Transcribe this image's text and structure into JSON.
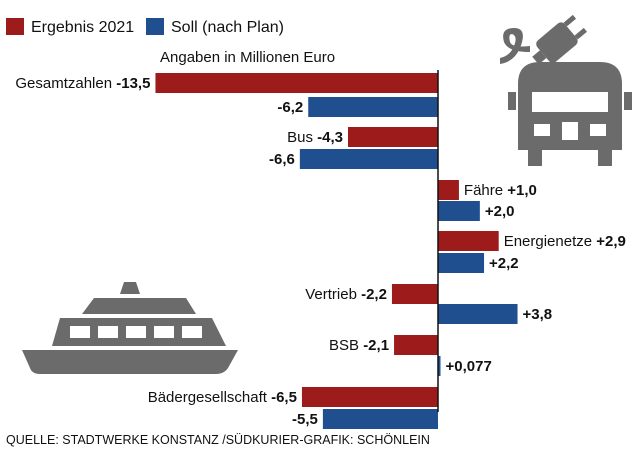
{
  "chart_data": {
    "type": "bar",
    "orientation": "horizontal",
    "subtitle": "Angaben in Millionen Euro",
    "categories": [
      "Gesamtzahlen",
      "Bus",
      "Fähre",
      "Energienetze",
      "Vertrieb",
      "BSB",
      "Bädergesellschaft"
    ],
    "series": [
      {
        "name": "Ergebnis 2021",
        "color": "#9e1b1b",
        "values": [
          -13.5,
          -4.3,
          1.0,
          2.9,
          -2.2,
          -2.1,
          -6.5
        ],
        "labels": [
          "-13,5",
          "-4,3",
          "+1,0",
          "+2,9",
          "-2,2",
          "-2,1",
          "-6,5"
        ]
      },
      {
        "name": "Soll (nach Plan)",
        "color": "#1f4f8f",
        "values": [
          -6.2,
          -6.6,
          2.0,
          2.2,
          3.8,
          0.077,
          -5.5
        ],
        "labels": [
          "-6,2",
          "-6,6",
          "+2,0",
          "+2,2",
          "+3,8",
          "+0,077",
          "-5,5"
        ]
      }
    ],
    "legend_position": "top-left",
    "grid": false
  },
  "icons": [
    "electric-bus-icon",
    "ferry-icon"
  ],
  "source": "QUELLE: STADTWERKE KONSTANZ /SÜDKURIER-GRAFIK: SCHÖNLEIN"
}
